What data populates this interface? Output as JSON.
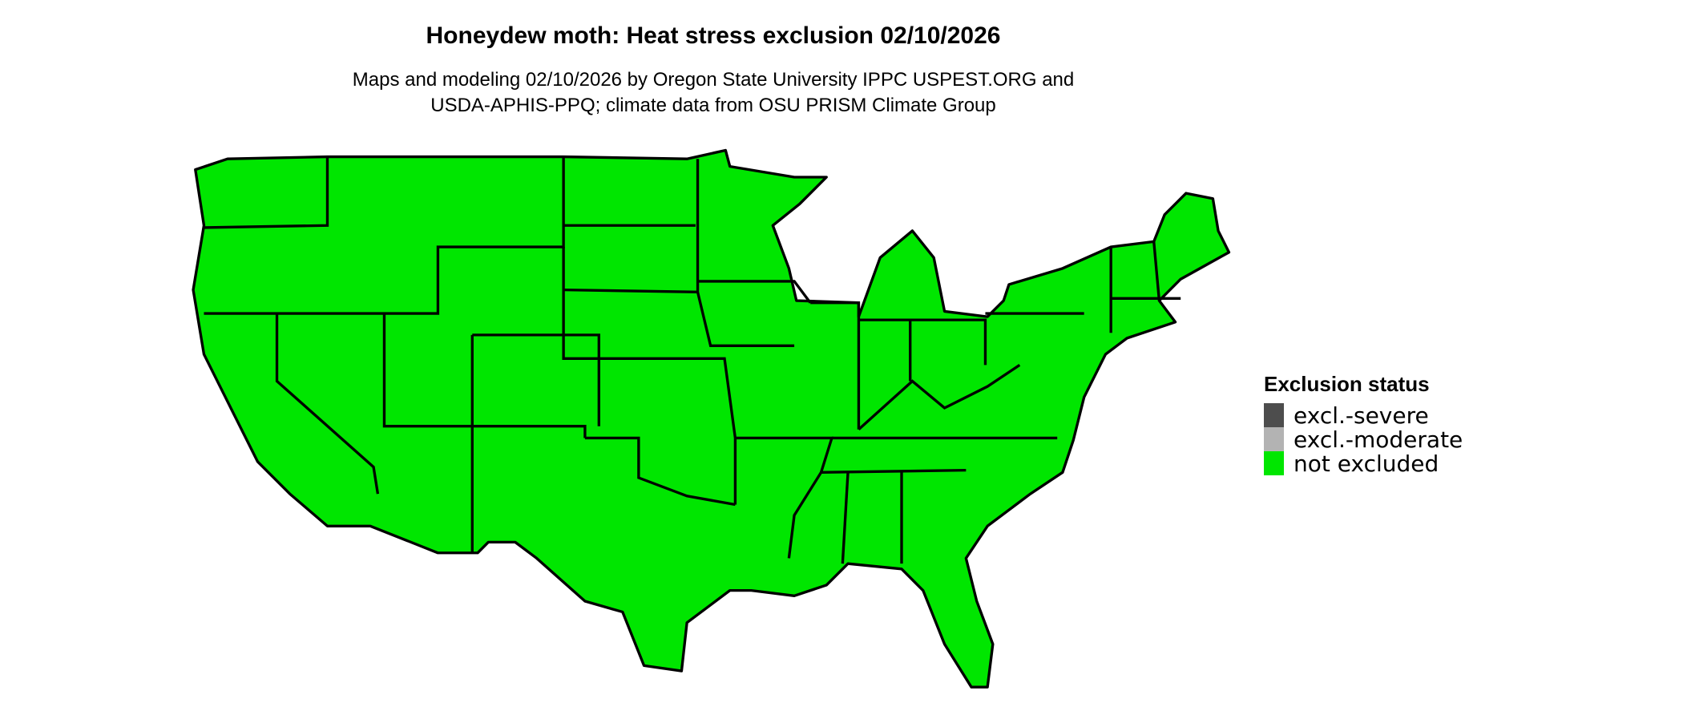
{
  "title": "Honeydew moth: Heat stress exclusion 02/10/2026",
  "subtitle_line1": "Maps and modeling 02/10/2026 by Oregon State University IPPC USPEST.ORG and",
  "subtitle_line2": "USDA-APHIS-PPQ; climate data from OSU PRISM Climate Group",
  "legend": {
    "title": "Exclusion status",
    "placement": "right",
    "items": [
      {
        "label": "excl.-severe",
        "color": "#4d4d4d"
      },
      {
        "label": "excl.-moderate",
        "color": "#b3b3b3"
      },
      {
        "label": "not excluded",
        "color": "#00e600"
      }
    ]
  },
  "map": {
    "region": "Contiguous United States",
    "status_all_states": "not excluded",
    "fill": "#00e600",
    "border": "#000000"
  }
}
